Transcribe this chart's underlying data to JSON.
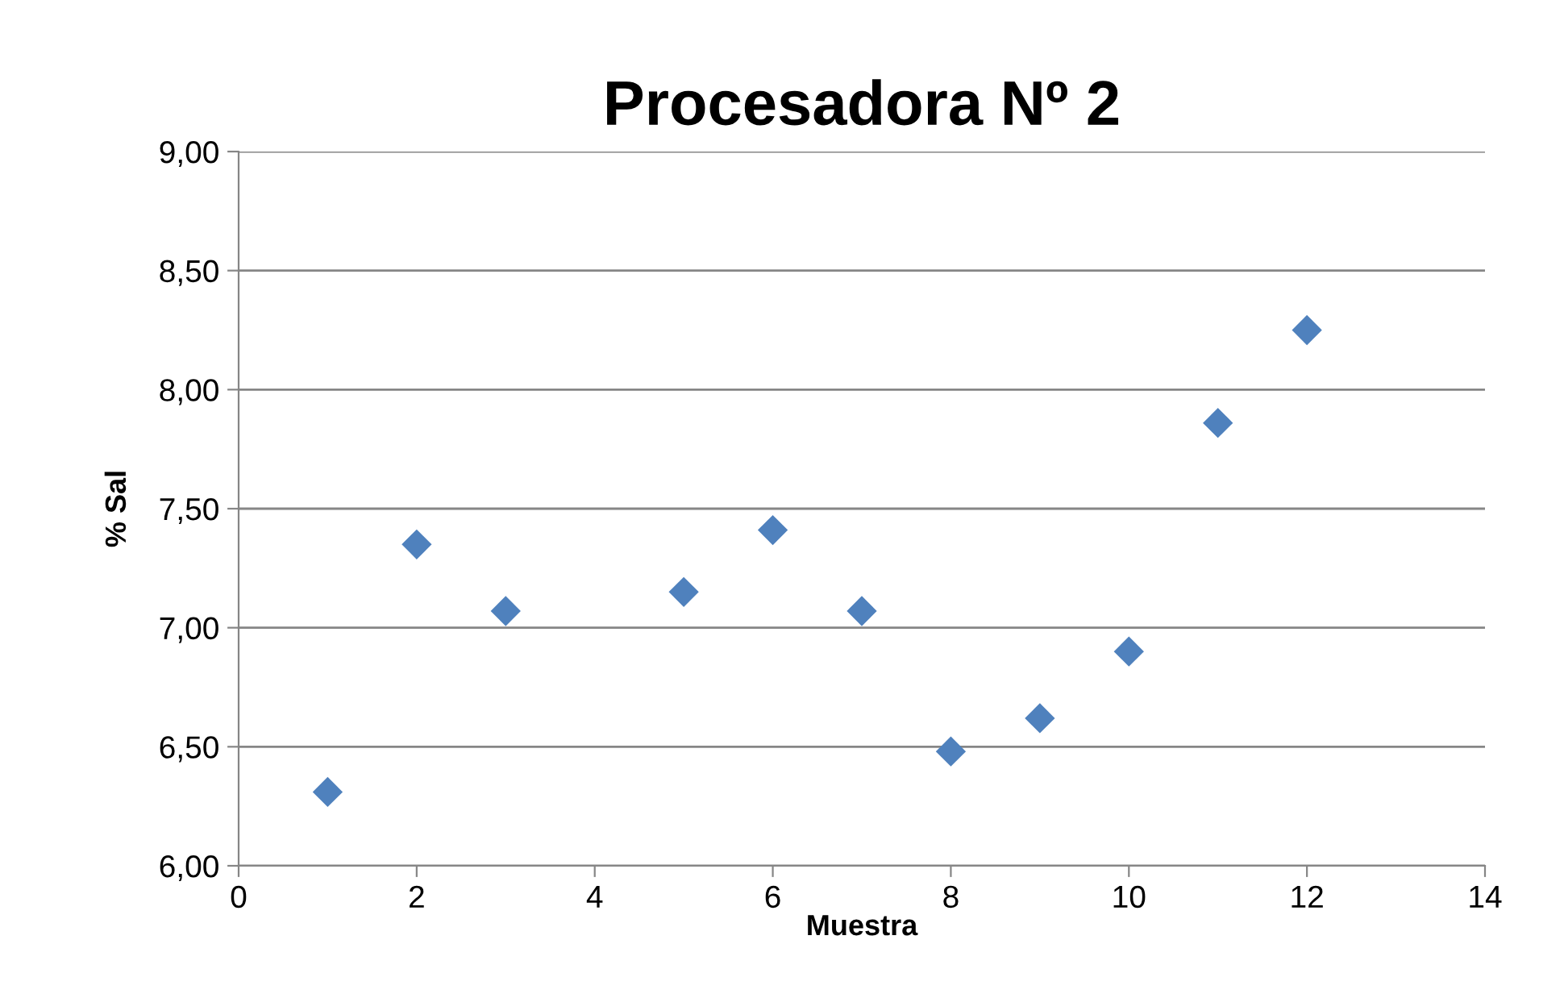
{
  "chart_data": {
    "type": "scatter",
    "title": "Procesadora Nº 2",
    "xlabel": "Muestra",
    "ylabel": "% Sal",
    "x": [
      1,
      2,
      3,
      5,
      6,
      7,
      8,
      9,
      10,
      11,
      12
    ],
    "values": [
      6.31,
      7.35,
      7.07,
      7.15,
      7.41,
      7.07,
      6.48,
      6.62,
      6.9,
      7.86,
      8.25
    ],
    "color": "#4f81bd",
    "marker": "diamond",
    "grid": "y",
    "legend": false,
    "xlim": [
      0,
      14
    ],
    "xticks": [
      0,
      2,
      4,
      6,
      8,
      10,
      12,
      14
    ],
    "ylim": [
      6,
      9
    ],
    "yticks": [
      {
        "value": 6,
        "label": "6,00"
      },
      {
        "value": 6.5,
        "label": "6,50"
      },
      {
        "value": 7,
        "label": "7,00"
      },
      {
        "value": 7.5,
        "label": "7,50"
      },
      {
        "value": 8,
        "label": "8,00"
      },
      {
        "value": 8.5,
        "label": "8,50"
      },
      {
        "value": 9,
        "label": "9,00"
      }
    ]
  }
}
